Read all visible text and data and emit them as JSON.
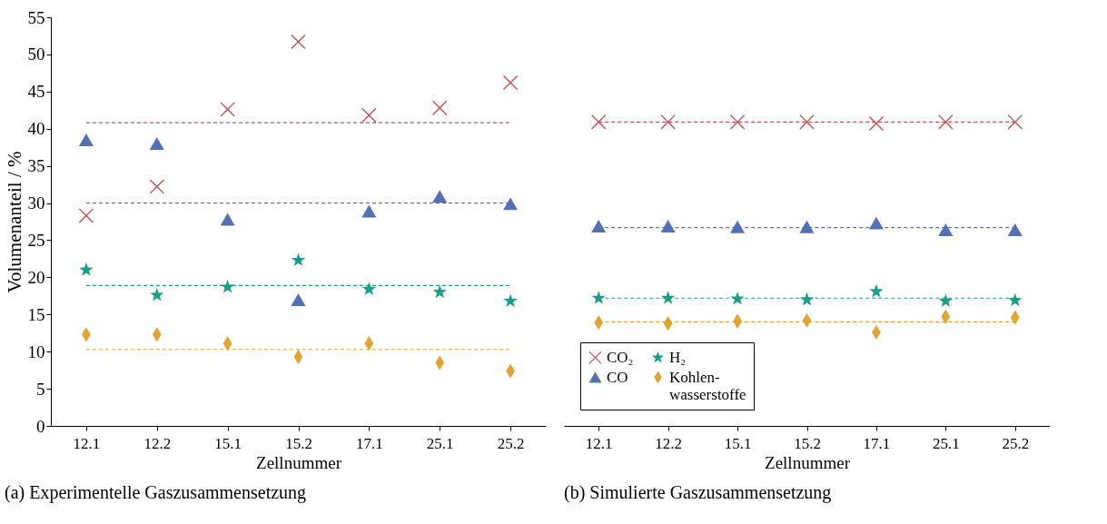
{
  "chart_data": [
    {
      "type": "scatter",
      "title": "(a) Experimentelle Gaszusammensetzung",
      "xlabel": "Zellnummer",
      "ylabel": "Volumenanteil / %",
      "categories": [
        "12.1",
        "12.2",
        "15.1",
        "15.2",
        "17.1",
        "25.1",
        "25.2"
      ],
      "series": [
        {
          "color": "#c44e52",
          "marker": "cross",
          "values": [
            28.3,
            32.2,
            42.6,
            51.7,
            41.8,
            42.8,
            46.2
          ]
        },
        {
          "color": "#5470b5",
          "marker": "triangle",
          "values": [
            38.5,
            38.0,
            27.8,
            17.0,
            28.9,
            30.9,
            29.9
          ]
        },
        {
          "color": "#1a9e8a",
          "marker": "star",
          "values": [
            21.0,
            17.6,
            18.7,
            22.3,
            18.4,
            18.0,
            16.8
          ]
        },
        {
          "color": "#e2a42f",
          "marker": "diamond",
          "values": [
            12.3,
            12.3,
            11.1,
            9.3,
            11.1,
            8.5,
            7.4
          ]
        }
      ],
      "ylim": [
        0,
        55
      ],
      "yticks": [
        0,
        5,
        10,
        15,
        20,
        25,
        30,
        35,
        40,
        45,
        50,
        55
      ],
      "grid": false,
      "legend": false,
      "ref_lines": [
        {
          "axis": "y",
          "value": 40.8,
          "color": "#c44e52",
          "line_style": "dashed"
        },
        {
          "axis": "y",
          "value": 30.0,
          "color": "#5470b5",
          "line_style": "dashed"
        },
        {
          "axis": "y",
          "value": 18.9,
          "color": "#1a9e8a",
          "line_style": "dashed"
        },
        {
          "axis": "y",
          "value": 10.3,
          "color": "#e2a42f",
          "line_style": "dashed"
        }
      ]
    },
    {
      "type": "scatter",
      "title": "(b) Simulierte Gaszusammensetzung",
      "xlabel": "Zellnummer",
      "categories": [
        "12.1",
        "12.2",
        "15.1",
        "15.2",
        "17.1",
        "25.1",
        "25.2"
      ],
      "series": [
        {
          "name": "CO₂",
          "color": "#c44e52",
          "marker": "cross",
          "values": [
            40.9,
            40.9,
            40.9,
            40.9,
            40.7,
            40.9,
            40.9
          ]
        },
        {
          "name": "CO",
          "color": "#5470b5",
          "marker": "triangle",
          "values": [
            26.9,
            26.9,
            26.8,
            26.8,
            27.3,
            26.4,
            26.4
          ]
        },
        {
          "name": "H₂",
          "color": "#1a9e8a",
          "marker": "star",
          "values": [
            17.2,
            17.2,
            17.1,
            17.0,
            18.1,
            16.8,
            16.9
          ]
        },
        {
          "name": "Kohlen-\nwasserstoffe",
          "color": "#e2a42f",
          "marker": "diamond",
          "values": [
            13.9,
            13.8,
            14.1,
            14.2,
            12.6,
            14.7,
            14.6
          ]
        }
      ],
      "ylim": [
        0,
        55
      ],
      "grid": false,
      "legend": "bottom left",
      "tick_labels": "x",
      "ref_lines": [
        {
          "axis": "y",
          "value": 40.9,
          "color": "#c44e52",
          "line_style": "dashed"
        },
        {
          "axis": "y",
          "value": 26.7,
          "color": "#5470b5",
          "line_style": "dashed"
        },
        {
          "axis": "y",
          "value": 17.2,
          "color": "#1a9e8a",
          "line_style": "dashed"
        },
        {
          "axis": "y",
          "value": 14.0,
          "color": "#e2a42f",
          "line_style": "dashed"
        }
      ]
    }
  ]
}
